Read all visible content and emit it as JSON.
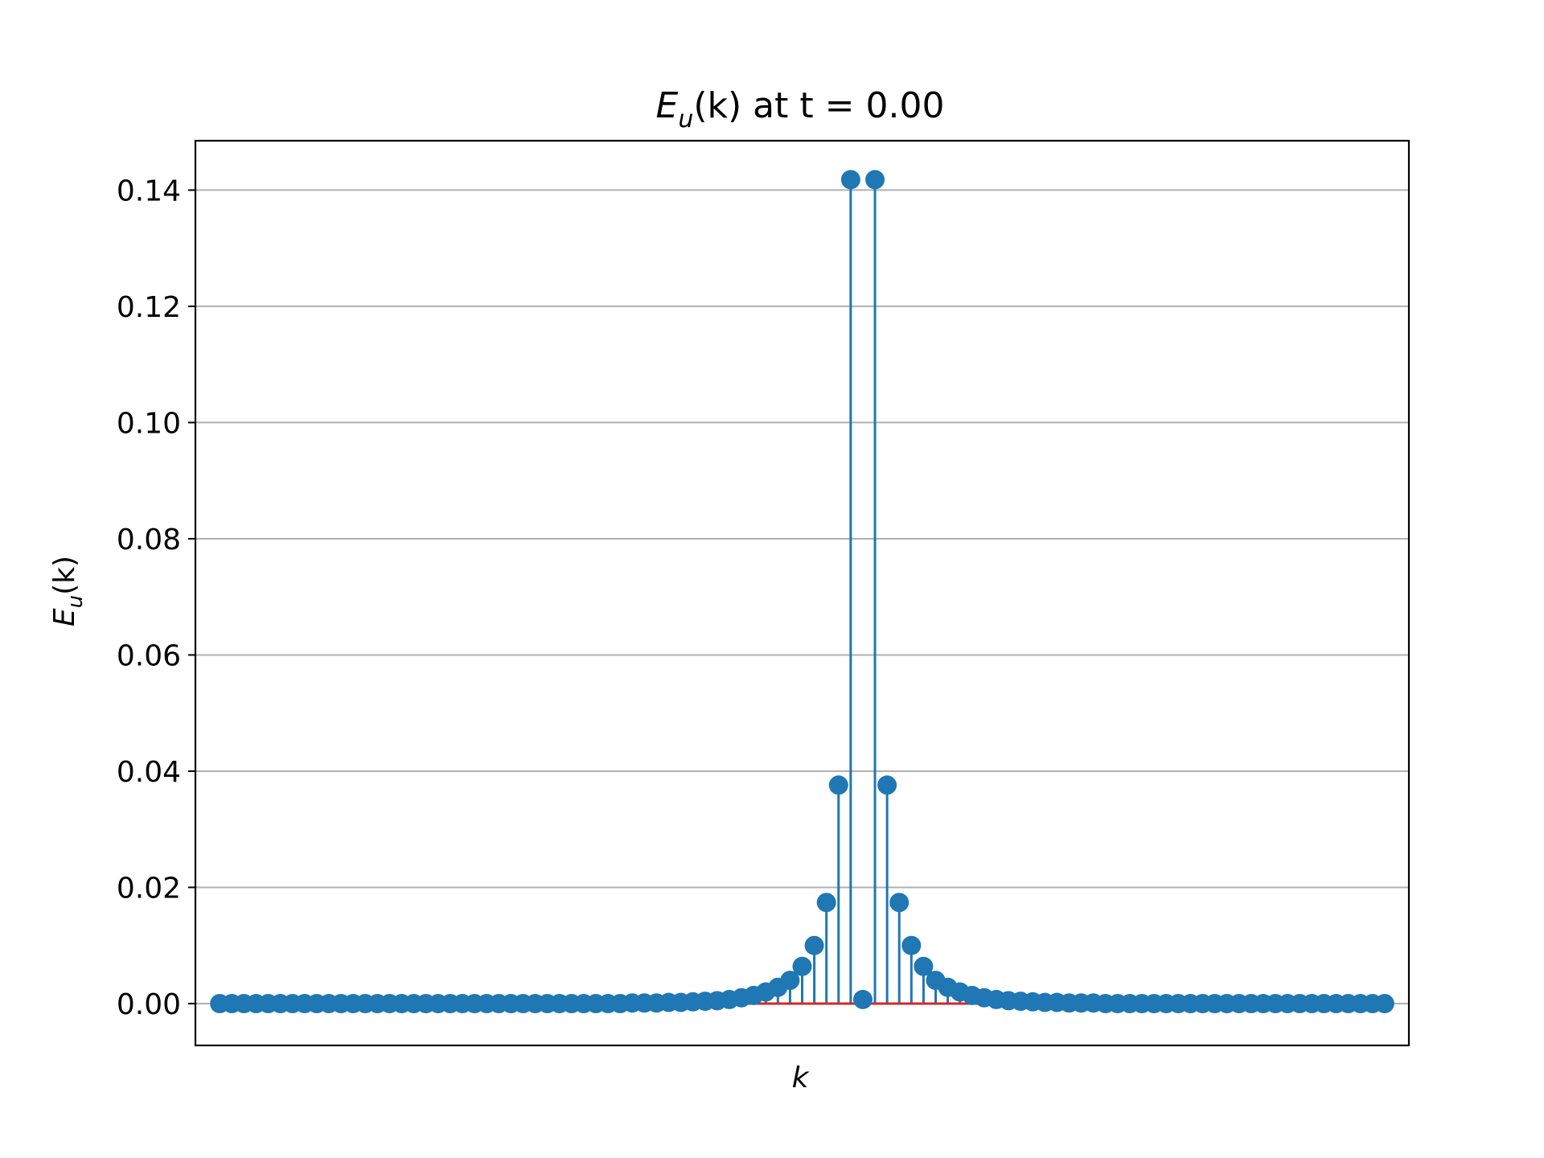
{
  "chart_data": {
    "type": "stem",
    "title": {
      "main": "E",
      "sub": "u",
      "rest": "(k) at t = 0.00"
    },
    "xlabel": "k",
    "ylabel": {
      "main": "E",
      "sub": "u",
      "rest": "(k)"
    },
    "ylim": [
      -0.0072,
      0.1485
    ],
    "yticks": [
      0.0,
      0.02,
      0.04,
      0.06,
      0.08,
      0.1,
      0.12,
      0.14
    ],
    "ytick_labels": [
      "0.00",
      "0.02",
      "0.04",
      "0.06",
      "0.08",
      "0.10",
      "0.12",
      "0.14"
    ],
    "xlim": [
      -2,
      98
    ],
    "grid": "horizontal",
    "colors": {
      "stem": "#1f77b4",
      "baseline": "#d62728",
      "grid": "#b0b0b0"
    },
    "x": [
      0,
      1,
      2,
      3,
      4,
      5,
      6,
      7,
      8,
      9,
      10,
      11,
      12,
      13,
      14,
      15,
      16,
      17,
      18,
      19,
      20,
      21,
      22,
      23,
      24,
      25,
      26,
      27,
      28,
      29,
      30,
      31,
      32,
      33,
      34,
      35,
      36,
      37,
      38,
      39,
      40,
      41,
      42,
      43,
      44,
      45,
      46,
      47,
      48,
      49,
      50,
      51,
      52,
      53,
      54,
      55,
      56,
      57,
      58,
      59,
      60,
      61,
      62,
      63,
      64,
      65,
      66,
      67,
      68,
      69,
      70,
      71,
      72,
      73,
      74,
      75,
      76,
      77,
      78,
      79,
      80,
      81,
      82,
      83,
      84,
      85,
      86,
      87,
      88,
      89,
      90,
      91,
      92,
      93,
      94,
      95,
      96
    ],
    "y": [
      0.0,
      0.0,
      0.0,
      0.0,
      0.0,
      0.0,
      0.0,
      0.0,
      0.0,
      0.0,
      0.0,
      0.0,
      0.0,
      0.0,
      0.0,
      0.0,
      0.0,
      0.0,
      0.0,
      0.0,
      0.0,
      0.0,
      0.0,
      0.0,
      0.0,
      0.0,
      0.0,
      0.0,
      0.0,
      0.0,
      0.0,
      0.0,
      0.0,
      0.0,
      0.0001,
      0.0001,
      0.0001,
      0.0002,
      0.0002,
      0.0003,
      0.0004,
      0.0005,
      0.0007,
      0.001,
      0.0014,
      0.002,
      0.0028,
      0.004,
      0.0064,
      0.01,
      0.0174,
      0.0376,
      0.1418,
      0.0007,
      0.1418,
      0.0376,
      0.0174,
      0.01,
      0.0064,
      0.004,
      0.0028,
      0.002,
      0.0014,
      0.001,
      0.0007,
      0.0005,
      0.0004,
      0.0003,
      0.0002,
      0.0002,
      0.0001,
      0.0001,
      0.0001,
      0.0,
      0.0,
      0.0,
      0.0,
      0.0,
      0.0,
      0.0,
      0.0,
      0.0,
      0.0,
      0.0,
      0.0,
      0.0,
      0.0,
      0.0,
      0.0,
      0.0,
      0.0,
      0.0,
      0.0,
      0.0,
      0.0,
      0.0,
      0.0
    ]
  }
}
